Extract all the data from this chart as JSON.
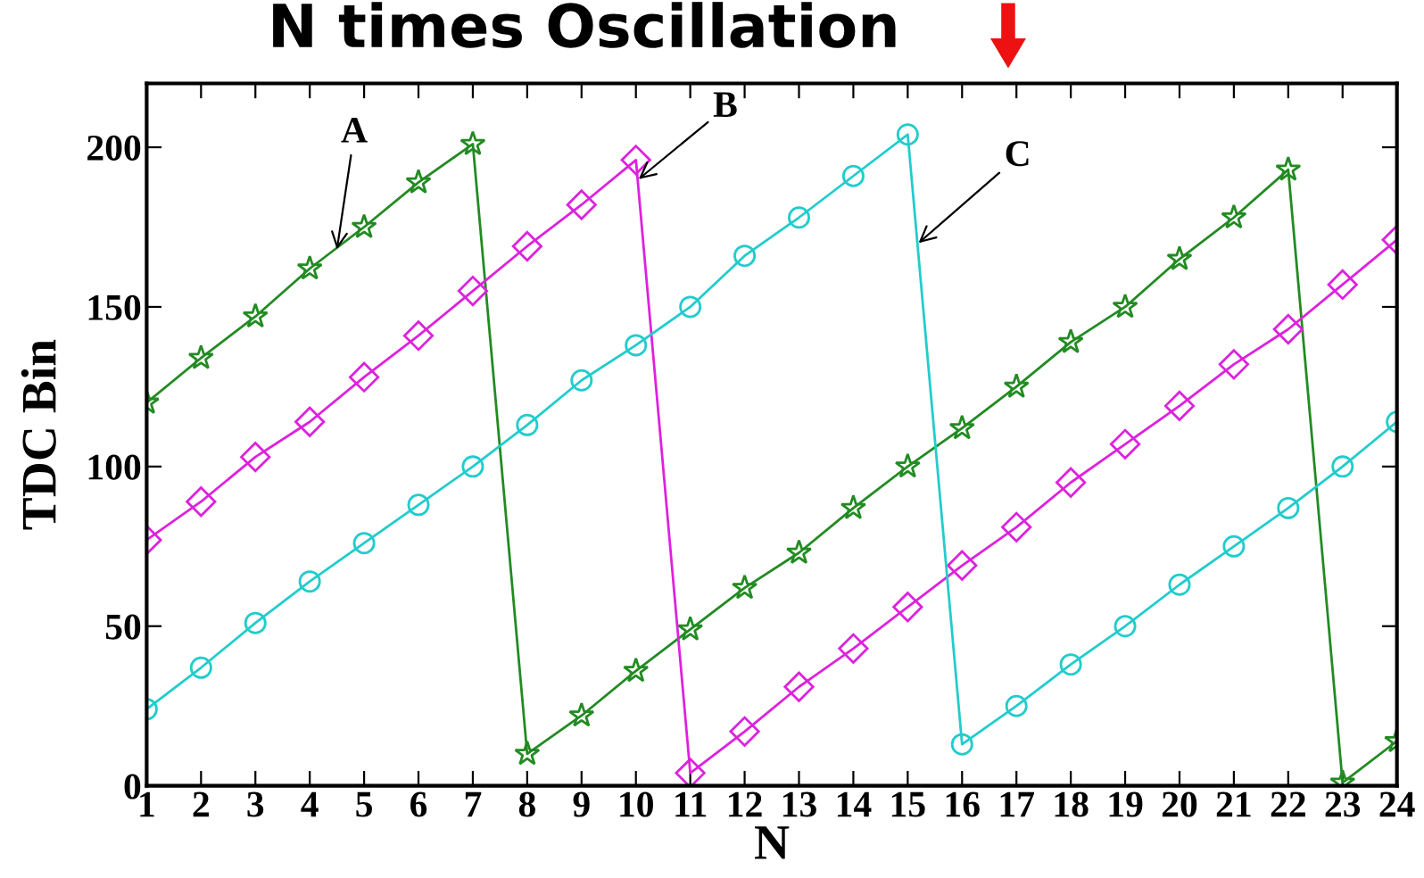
{
  "chart_data": {
    "type": "line",
    "title": "N times Oscillation",
    "xlabel": "N",
    "ylabel": "TDC Bin",
    "x": [
      1,
      2,
      3,
      4,
      5,
      6,
      7,
      8,
      9,
      10,
      11,
      12,
      13,
      14,
      15,
      16,
      17,
      18,
      19,
      20,
      21,
      22,
      23,
      24
    ],
    "series": [
      {
        "color": "#228b22",
        "marker": "star",
        "values": [
          120,
          134,
          147,
          162,
          175,
          189,
          201,
          10,
          22,
          36,
          49,
          62,
          73,
          87,
          100,
          112,
          125,
          139,
          150,
          165,
          178,
          193,
          1,
          14
        ]
      },
      {
        "color": "#dd22dd",
        "marker": "diamond",
        "values": [
          77,
          89,
          103,
          114,
          128,
          141,
          155,
          169,
          182,
          196,
          4,
          17,
          31,
          43,
          56,
          69,
          81,
          95,
          107,
          119,
          132,
          143,
          157,
          171
        ]
      },
      {
        "color": "#22cccc",
        "marker": "circle",
        "values": [
          24,
          37,
          51,
          64,
          76,
          88,
          100,
          113,
          127,
          138,
          150,
          166,
          178,
          191,
          204,
          13,
          25,
          38,
          50,
          63,
          75,
          87,
          100,
          114
        ]
      }
    ],
    "annotations": [
      {
        "text": "A",
        "x": 4.5,
        "y": 168
      },
      {
        "text": "B",
        "x": 10.05,
        "y": 190
      },
      {
        "text": "C",
        "x": 15.2,
        "y": 170
      }
    ],
    "xlim": [
      1,
      24
    ],
    "ylim": [
      0,
      220
    ],
    "xticks": [
      1,
      2,
      3,
      4,
      5,
      6,
      7,
      8,
      9,
      10,
      11,
      12,
      13,
      14,
      15,
      16,
      17,
      18,
      19,
      20,
      21,
      22,
      23,
      24
    ],
    "yticks": [
      0,
      50,
      100,
      150,
      200
    ],
    "grid": false,
    "legend": false,
    "line_style": "solid"
  }
}
